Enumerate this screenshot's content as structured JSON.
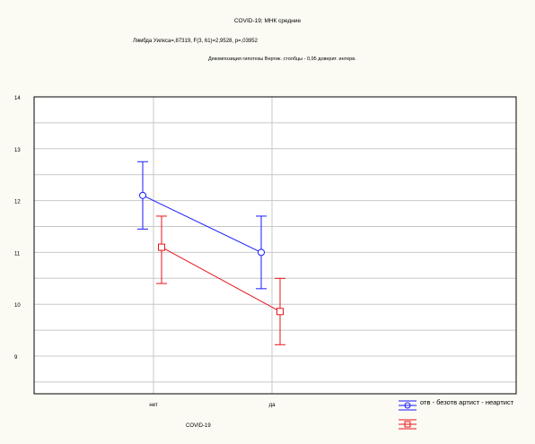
{
  "header": {
    "title": "COVID-19; МНК средние",
    "stats": "Лямбда Уилкса=,87319, F(3, 61)=2,9528, p=,03952",
    "subtitle": "Декомпозиция гипотезы Вертик. столбцы - 0,95 доверит. интерв."
  },
  "colors": {
    "series1": "#1a1aff",
    "series2": "#e8141a",
    "grid": "#c8c8c8",
    "frame": "#000000"
  },
  "chart_data": {
    "type": "line",
    "title": "COVID-19; МНК средние",
    "xlabel": "COVID-19",
    "ylabel": "",
    "categories": [
      "нет",
      "да"
    ],
    "y_tick_labels": [
      "14",
      "13",
      "12",
      "11",
      "10",
      "9"
    ],
    "ylim": [
      8,
      14
    ],
    "grid": true,
    "legend_position": "bottom-right",
    "series": [
      {
        "name": "отв - безотв артист - неартист",
        "color": "#1a1aff",
        "marker": "circle",
        "x": [
          "нет",
          "да"
        ],
        "values": [
          12.1,
          11.0
        ],
        "ci_low": [
          11.45,
          10.3
        ],
        "ci_high": [
          12.75,
          11.7
        ]
      },
      {
        "name": "",
        "color": "#e8141a",
        "marker": "square",
        "x": [
          "нет",
          "да"
        ],
        "values": [
          11.1,
          9.86
        ],
        "ci_low": [
          10.4,
          9.22
        ],
        "ci_high": [
          11.7,
          10.5
        ]
      }
    ]
  }
}
